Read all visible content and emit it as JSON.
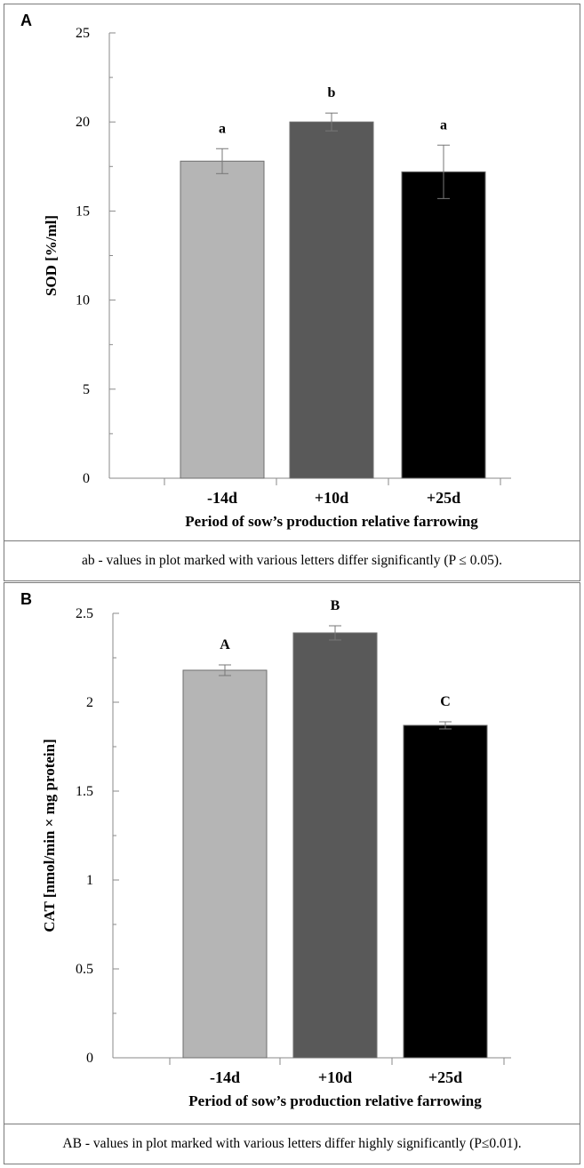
{
  "chart_data": [
    {
      "type": "bar",
      "panel": "A",
      "categories": [
        "-14d",
        "+10d",
        "+25d"
      ],
      "values": [
        17.8,
        20.0,
        17.2
      ],
      "errors": [
        0.7,
        0.5,
        1.5
      ],
      "significance_letters": [
        "a",
        "b",
        "a"
      ],
      "colors": [
        "#b5b5b5",
        "#595959",
        "#000000"
      ],
      "ylabel": "SOD [%/ml]",
      "xlabel": "Period of sow’s production relative farrowing",
      "ylim": [
        0,
        25
      ],
      "yticks": [
        0,
        5,
        10,
        15,
        20,
        25
      ],
      "ytick_labels": [
        "0",
        "5",
        "10",
        "15",
        "20",
        "25"
      ],
      "note": "ab - values in plot marked with various letters differ significantly (P ≤ 0.05)."
    },
    {
      "type": "bar",
      "panel": "B",
      "categories": [
        "-14d",
        "+10d",
        "+25d"
      ],
      "values": [
        2.18,
        2.39,
        1.87
      ],
      "errors": [
        0.03,
        0.04,
        0.02
      ],
      "significance_letters": [
        "A",
        "B",
        "C"
      ],
      "colors": [
        "#b5b5b5",
        "#595959",
        "#000000"
      ],
      "ylabel": "CAT [nmol/min × mg protein]",
      "xlabel": "Period of sow’s production relative farrowing",
      "ylim": [
        0,
        2.5
      ],
      "yticks": [
        0,
        0.5,
        1,
        1.5,
        2,
        2.5
      ],
      "ytick_labels": [
        "0",
        "0.5",
        "1",
        "1.5",
        "2",
        "2.5"
      ],
      "note": "AB - values in plot marked with various letters differ highly significantly (P≤0.01)."
    }
  ]
}
